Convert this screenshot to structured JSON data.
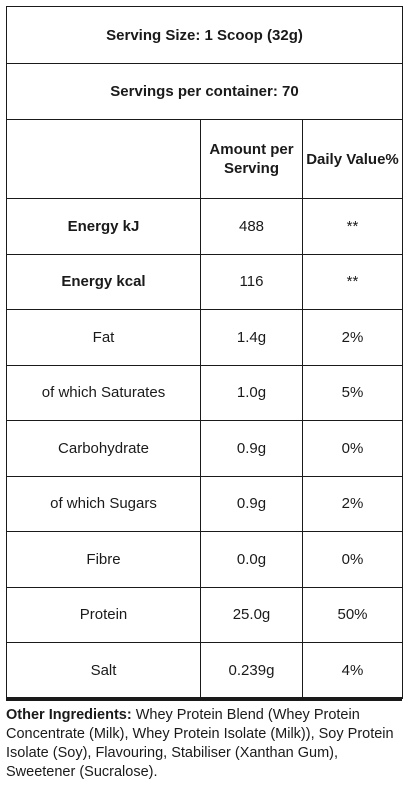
{
  "serving_size": "Serving Size: 1 Scoop (32g)",
  "servings_per_container": "Servings per container: 70",
  "headers": {
    "amount_line1": "Amount per",
    "amount_line2": "Serving",
    "daily_value": "Daily Value%"
  },
  "rows": [
    {
      "name": "Energy kJ",
      "amount": "488",
      "dv": "**",
      "bold": true
    },
    {
      "name": "Energy kcal",
      "amount": "116",
      "dv": "**",
      "bold": true
    },
    {
      "name": "Fat",
      "amount": "1.4g",
      "dv": "2%",
      "bold": false
    },
    {
      "name": "of which Saturates",
      "amount": "1.0g",
      "dv": "5%",
      "bold": false
    },
    {
      "name": "Carbohydrate",
      "amount": "0.9g",
      "dv": "0%",
      "bold": false
    },
    {
      "name": "of which Sugars",
      "amount": "0.9g",
      "dv": "2%",
      "bold": false
    },
    {
      "name": "Fibre",
      "amount": "0.0g",
      "dv": "0%",
      "bold": false
    },
    {
      "name": "Protein",
      "amount": "25.0g",
      "dv": "50%",
      "bold": false
    },
    {
      "name": "Salt",
      "amount": "0.239g",
      "dv": "4%",
      "bold": false
    }
  ],
  "ingredients": {
    "label": "Other Ingredients:",
    "text": " Whey Protein Blend (Whey Protein Concentrate (Milk), Whey Protein Isolate (Milk)), Soy Protein Isolate (Soy), Flavouring, Stabiliser (Xanthan Gum), Sweetener (Sucralose)."
  }
}
